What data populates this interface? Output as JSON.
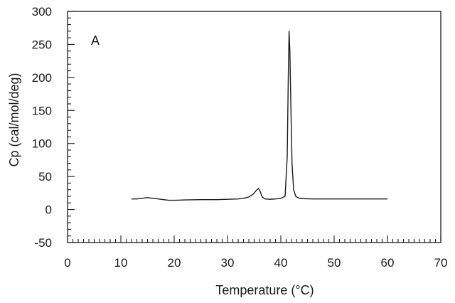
{
  "chart_data": {
    "type": "line",
    "title": "",
    "panel_label": "A",
    "xlabel": "Temperature (°C)",
    "ylabel": "Cp (cal/mol/deg)",
    "xlim": [
      0,
      70
    ],
    "ylim": [
      -50,
      300
    ],
    "xticks": [
      0,
      10,
      20,
      30,
      40,
      50,
      60,
      70
    ],
    "yticks": [
      -50,
      0,
      50,
      100,
      150,
      200,
      250,
      300
    ],
    "x_minor_step": 1,
    "y_minor_step": 10,
    "grid": false,
    "series": [
      {
        "x": [
          12,
          13,
          14,
          15,
          16,
          17,
          18,
          19,
          20,
          22,
          25,
          28,
          30,
          32,
          33,
          34,
          34.8,
          35.4,
          35.8,
          36.1,
          36.5,
          37,
          38,
          39,
          40,
          40.8,
          41.2,
          41.4,
          41.55,
          41.7,
          41.9,
          42.1,
          42.4,
          42.8,
          43.3,
          44,
          46,
          50,
          55,
          60
        ],
        "y": [
          16,
          16,
          17,
          18,
          17,
          16,
          15,
          14,
          14,
          14.5,
          15,
          15,
          15.5,
          16,
          17,
          19,
          23,
          29,
          32,
          28,
          19,
          16,
          15.5,
          16,
          17,
          20,
          80,
          200,
          270,
          240,
          150,
          70,
          30,
          20,
          17.5,
          16.5,
          16,
          16,
          16,
          16
        ]
      }
    ]
  }
}
